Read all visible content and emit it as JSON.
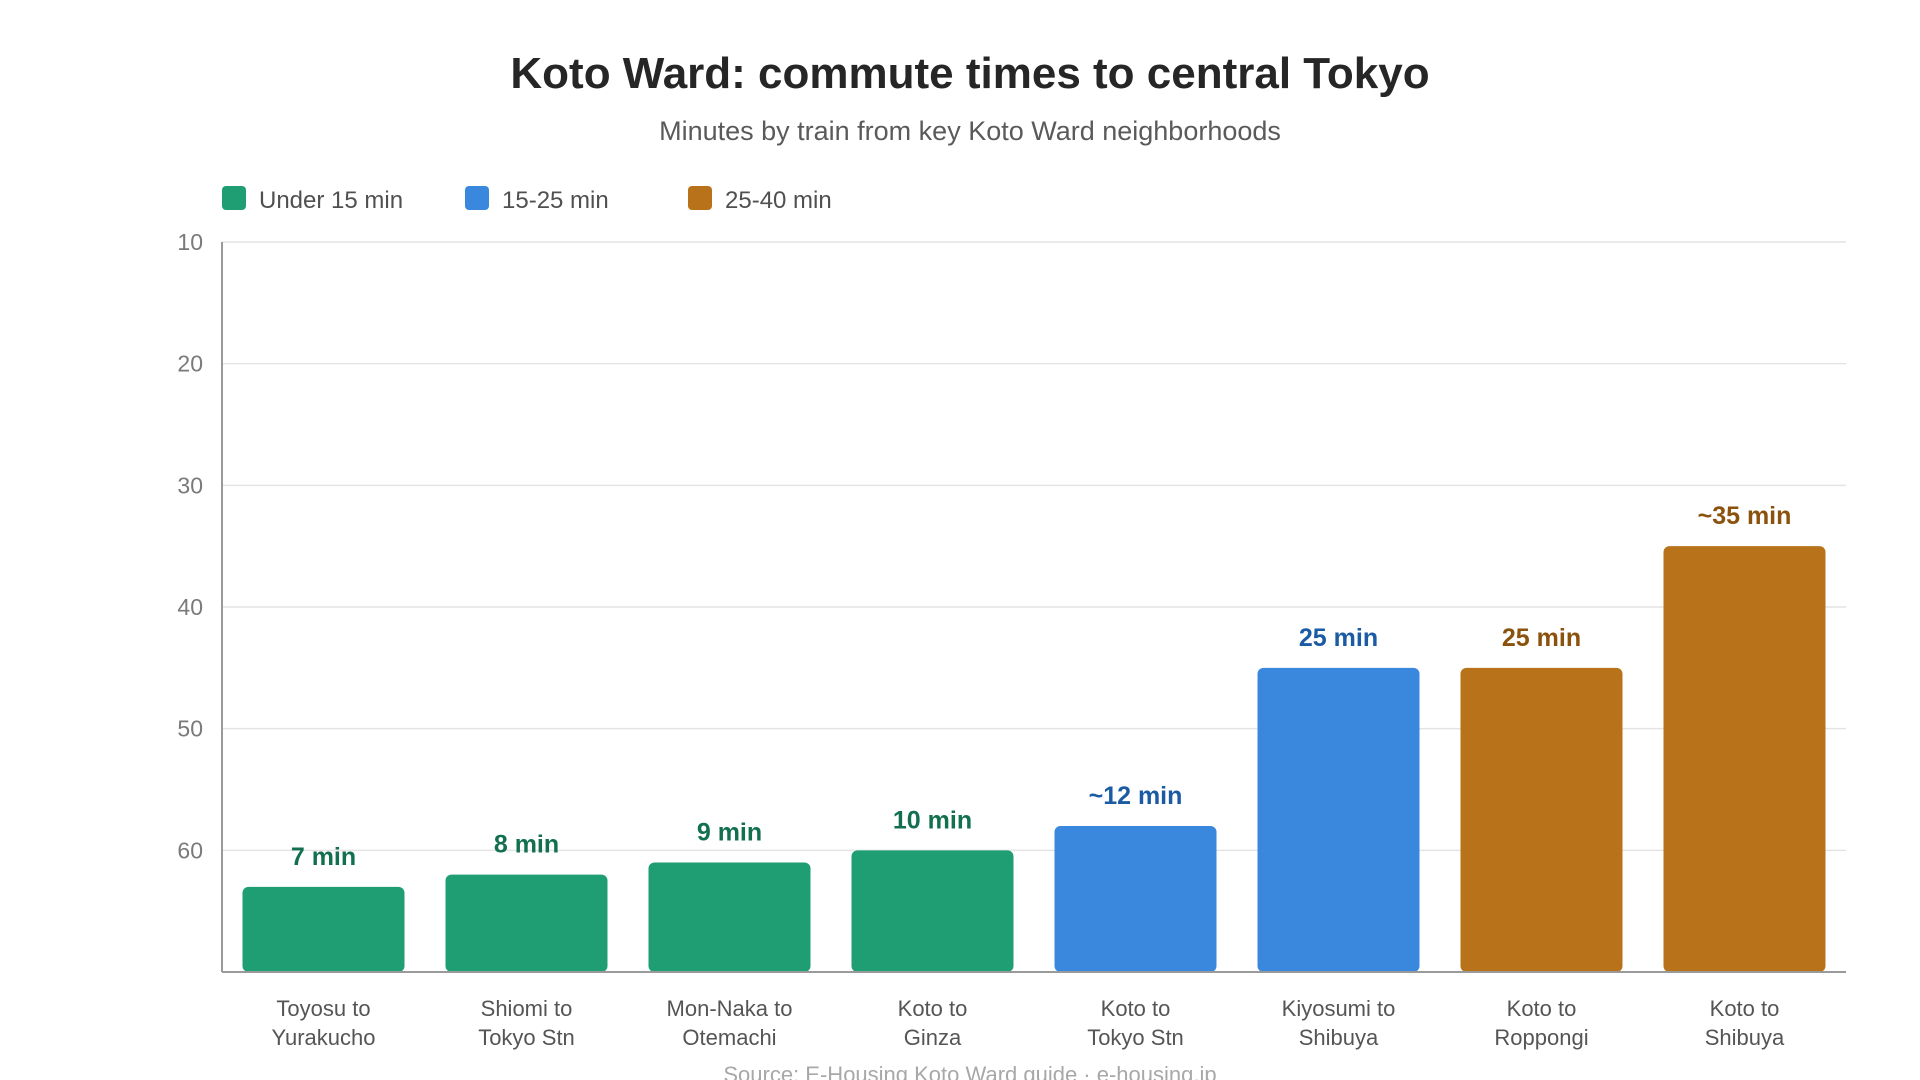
{
  "chart_data": {
    "type": "bar",
    "title": "Koto Ward: commute times to central Tokyo",
    "subtitle": "Minutes by train from key Koto Ward neighborhoods",
    "source": "Source: E-Housing Koto Ward guide · e-housing.jp",
    "y_axis": {
      "inverted": true,
      "ticks": [
        "10",
        "20",
        "30",
        "40",
        "50",
        "60"
      ],
      "tick_values": [
        10,
        20,
        30,
        40,
        50,
        60
      ],
      "range": [
        10,
        70
      ]
    },
    "grid": true,
    "legend_position": "top-left",
    "legend": [
      {
        "label": "Under 15 min",
        "color": "#1f9e74"
      },
      {
        "label": "15-25 min",
        "color": "#3a88de"
      },
      {
        "label": "25-40 min",
        "color": "#b8731a"
      }
    ],
    "categories": [
      [
        "Toyosu to",
        "Yurakucho"
      ],
      [
        "Shiomi to",
        "Tokyo Stn"
      ],
      [
        "Mon-Naka to",
        "Otemachi"
      ],
      [
        "Koto to",
        "Ginza"
      ],
      [
        "Koto to",
        "Tokyo Stn"
      ],
      [
        "Kiyosumi to",
        "Shibuya"
      ],
      [
        "Koto to",
        "Roppongi"
      ],
      [
        "Koto to",
        "Shibuya"
      ]
    ],
    "values": [
      7,
      8,
      9,
      10,
      12,
      25,
      25,
      35
    ],
    "bar_tops": [
      63,
      62,
      61,
      60,
      58,
      45,
      45,
      35
    ],
    "labels": [
      "7 min",
      "8 min",
      "9 min",
      "10 min",
      "~12 min",
      "25 min",
      "25 min",
      "~35 min"
    ],
    "groups": [
      0,
      0,
      0,
      0,
      1,
      1,
      2,
      2
    ],
    "bar_colors": [
      "#1f9e74",
      "#1f9e74",
      "#1f9e74",
      "#1f9e74",
      "#3a88de",
      "#3a88de",
      "#b8731a",
      "#b8731a"
    ],
    "label_colors": [
      "#13704f",
      "#13704f",
      "#13704f",
      "#13704f",
      "#1a5ba3",
      "#1a5ba3",
      "#8a520c",
      "#8a520c"
    ]
  }
}
